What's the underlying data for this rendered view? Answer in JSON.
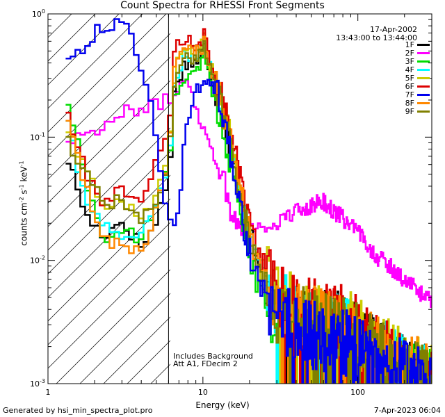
{
  "chart_data": {
    "type": "line",
    "title": "Count Spectra for RHESSI Front Segments",
    "xlabel": "Energy (keV)",
    "ylabel": "counts cm-2 s-1 keV-1",
    "x_scale": "log",
    "y_scale": "log",
    "xlim": [
      1,
      300
    ],
    "ylim": [
      0.001,
      1.0
    ],
    "x_tick_labels": [
      "1",
      "10",
      "100"
    ],
    "y_tick_labels": [
      "10-3",
      "10-2",
      "10-1",
      "100"
    ],
    "shaded_region_upper_keV": 6,
    "annotations": {
      "date": "17-Apr-2002",
      "time_range": "13:43:00 to 13:44:00",
      "note1": "Includes Background",
      "note2": "Att A1, FDecim 2"
    },
    "series": [
      {
        "name": "1F",
        "color": "#000000",
        "knots": [
          [
            1.3,
            0.075
          ],
          [
            1.8,
            0.022
          ],
          [
            2.3,
            0.016
          ],
          [
            3.0,
            0.021
          ],
          [
            4.0,
            0.013
          ],
          [
            5.0,
            0.02
          ],
          [
            6.0,
            0.05
          ],
          [
            6.6,
            0.25
          ],
          [
            7.5,
            0.38
          ],
          [
            9.5,
            0.42
          ],
          [
            10.2,
            0.55
          ],
          [
            11.0,
            0.34
          ],
          [
            13,
            0.18
          ],
          [
            16,
            0.06
          ],
          [
            19,
            0.02
          ],
          [
            23,
            0.008
          ],
          [
            30,
            0.004
          ],
          [
            50,
            0.003
          ],
          [
            80,
            0.003
          ],
          [
            130,
            0.0018
          ],
          [
            200,
            0.0013
          ],
          [
            280,
            0.0011
          ]
        ]
      },
      {
        "name": "2F",
        "color": "#ff00ff",
        "knots": [
          [
            1.3,
            0.095
          ],
          [
            1.8,
            0.11
          ],
          [
            2.5,
            0.13
          ],
          [
            3.5,
            0.17
          ],
          [
            5.0,
            0.18
          ],
          [
            6.0,
            0.2
          ],
          [
            7.0,
            0.25
          ],
          [
            8.0,
            0.32
          ],
          [
            9.0,
            0.18
          ],
          [
            10.0,
            0.12
          ],
          [
            12.0,
            0.07
          ],
          [
            14.0,
            0.04
          ],
          [
            15.5,
            0.022
          ],
          [
            20,
            0.02
          ],
          [
            25,
            0.018
          ],
          [
            30,
            0.02
          ],
          [
            40,
            0.025
          ],
          [
            50,
            0.028
          ],
          [
            60,
            0.03
          ],
          [
            70,
            0.025
          ],
          [
            80,
            0.022
          ],
          [
            90,
            0.019
          ],
          [
            110,
            0.015
          ],
          [
            130,
            0.011
          ],
          [
            160,
            0.009
          ],
          [
            200,
            0.007
          ],
          [
            250,
            0.0055
          ],
          [
            300,
            0.0048
          ]
        ]
      },
      {
        "name": "3F",
        "color": "#00dd00",
        "knots": [
          [
            1.3,
            0.23
          ],
          [
            1.8,
            0.04
          ],
          [
            2.3,
            0.015
          ],
          [
            3.0,
            0.017
          ],
          [
            4.0,
            0.015
          ],
          [
            5.0,
            0.028
          ],
          [
            6.0,
            0.06
          ],
          [
            6.6,
            0.22
          ],
          [
            7.5,
            0.3
          ],
          [
            9.5,
            0.35
          ],
          [
            10.2,
            0.5
          ],
          [
            11.0,
            0.3
          ],
          [
            13,
            0.14
          ],
          [
            16,
            0.045
          ],
          [
            19,
            0.015
          ],
          [
            23,
            0.006
          ],
          [
            30,
            0.0035
          ],
          [
            50,
            0.0025
          ],
          [
            80,
            0.0025
          ],
          [
            130,
            0.0015
          ],
          [
            200,
            0.0012
          ],
          [
            280,
            0.001
          ]
        ]
      },
      {
        "name": "4F",
        "color": "#00ffff",
        "knots": [
          [
            1.3,
            0.17
          ],
          [
            1.8,
            0.025
          ],
          [
            2.3,
            0.02
          ],
          [
            3.0,
            0.015
          ],
          [
            4.0,
            0.017
          ],
          [
            5.0,
            0.025
          ],
          [
            6.0,
            0.06
          ],
          [
            6.6,
            0.3
          ],
          [
            7.5,
            0.45
          ],
          [
            9.5,
            0.5
          ],
          [
            10.2,
            0.6
          ],
          [
            11.0,
            0.4
          ],
          [
            13,
            0.2
          ],
          [
            16,
            0.065
          ],
          [
            19,
            0.022
          ],
          [
            23,
            0.009
          ],
          [
            30,
            0.0045
          ],
          [
            50,
            0.0032
          ],
          [
            80,
            0.003
          ],
          [
            130,
            0.0019
          ],
          [
            200,
            0.0014
          ],
          [
            280,
            0.0012
          ]
        ]
      },
      {
        "name": "5F",
        "color": "#cccc00",
        "knots": [
          [
            1.3,
            0.12
          ],
          [
            1.8,
            0.05
          ],
          [
            2.3,
            0.028
          ],
          [
            3.0,
            0.03
          ],
          [
            4.0,
            0.022
          ],
          [
            5.0,
            0.035
          ],
          [
            6.0,
            0.08
          ],
          [
            6.6,
            0.35
          ],
          [
            7.5,
            0.5
          ],
          [
            9.5,
            0.55
          ],
          [
            10.2,
            0.65
          ],
          [
            11.0,
            0.42
          ],
          [
            13,
            0.22
          ],
          [
            16,
            0.07
          ],
          [
            19,
            0.024
          ],
          [
            23,
            0.01
          ],
          [
            30,
            0.005
          ],
          [
            50,
            0.0035
          ],
          [
            80,
            0.0035
          ],
          [
            130,
            0.002
          ],
          [
            200,
            0.0015
          ],
          [
            280,
            0.0012
          ]
        ]
      },
      {
        "name": "6F",
        "color": "#dd0000",
        "knots": [
          [
            1.3,
            0.18
          ],
          [
            1.8,
            0.045
          ],
          [
            2.3,
            0.028
          ],
          [
            3.0,
            0.04
          ],
          [
            4.0,
            0.03
          ],
          [
            5.0,
            0.06
          ],
          [
            6.0,
            0.1
          ],
          [
            6.6,
            0.55
          ],
          [
            7.5,
            0.6
          ],
          [
            9.5,
            0.55
          ],
          [
            10.2,
            0.7
          ],
          [
            11.0,
            0.45
          ],
          [
            13,
            0.24
          ],
          [
            16,
            0.08
          ],
          [
            19,
            0.026
          ],
          [
            23,
            0.011
          ],
          [
            30,
            0.005
          ],
          [
            50,
            0.0038
          ],
          [
            80,
            0.0035
          ],
          [
            130,
            0.0021
          ],
          [
            200,
            0.0015
          ],
          [
            280,
            0.0012
          ]
        ]
      },
      {
        "name": "7F",
        "color": "#0000ee",
        "knots": [
          [
            1.3,
            0.4
          ],
          [
            1.6,
            0.5
          ],
          [
            2.0,
            0.7
          ],
          [
            2.5,
            0.8
          ],
          [
            3.0,
            0.85
          ],
          [
            3.4,
            0.7
          ],
          [
            3.8,
            0.4
          ],
          [
            4.3,
            0.28
          ],
          [
            4.8,
            0.14
          ],
          [
            5.3,
            0.06
          ],
          [
            5.8,
            0.025
          ],
          [
            6.2,
            0.022
          ],
          [
            6.8,
            0.02
          ],
          [
            7.3,
            0.05
          ],
          [
            7.8,
            0.12
          ],
          [
            8.4,
            0.16
          ],
          [
            9.0,
            0.25
          ],
          [
            10.0,
            0.26
          ],
          [
            11.0,
            0.27
          ],
          [
            12.5,
            0.25
          ],
          [
            14,
            0.12
          ],
          [
            16,
            0.045
          ],
          [
            19,
            0.015
          ],
          [
            23,
            0.006
          ],
          [
            30,
            0.0035
          ],
          [
            50,
            0.0025
          ],
          [
            80,
            0.0022
          ],
          [
            130,
            0.0015
          ],
          [
            200,
            0.0012
          ],
          [
            280,
            0.001
          ]
        ]
      },
      {
        "name": "8F",
        "color": "#ff8800",
        "knots": [
          [
            1.3,
            0.15
          ],
          [
            1.8,
            0.035
          ],
          [
            2.3,
            0.015
          ],
          [
            3.0,
            0.013
          ],
          [
            4.0,
            0.012
          ],
          [
            5.0,
            0.025
          ],
          [
            6.0,
            0.07
          ],
          [
            6.6,
            0.4
          ],
          [
            7.5,
            0.5
          ],
          [
            9.5,
            0.48
          ],
          [
            10.2,
            0.6
          ],
          [
            11.0,
            0.4
          ],
          [
            13,
            0.2
          ],
          [
            16,
            0.065
          ],
          [
            19,
            0.022
          ],
          [
            23,
            0.009
          ],
          [
            30,
            0.0045
          ],
          [
            50,
            0.0033
          ],
          [
            80,
            0.003
          ],
          [
            130,
            0.0019
          ],
          [
            200,
            0.0014
          ],
          [
            280,
            0.0012
          ]
        ]
      },
      {
        "name": "9F",
        "color": "#808000",
        "knots": [
          [
            1.3,
            0.1
          ],
          [
            1.8,
            0.05
          ],
          [
            2.3,
            0.03
          ],
          [
            3.0,
            0.03
          ],
          [
            4.0,
            0.02
          ],
          [
            5.0,
            0.03
          ],
          [
            6.0,
            0.07
          ],
          [
            6.6,
            0.3
          ],
          [
            7.5,
            0.45
          ],
          [
            9.5,
            0.45
          ],
          [
            10.2,
            0.55
          ],
          [
            11.0,
            0.38
          ],
          [
            13,
            0.19
          ],
          [
            16,
            0.06
          ],
          [
            19,
            0.02
          ],
          [
            23,
            0.008
          ],
          [
            30,
            0.004
          ],
          [
            50,
            0.003
          ],
          [
            80,
            0.003
          ],
          [
            130,
            0.0018
          ],
          [
            200,
            0.0013
          ],
          [
            280,
            0.0011
          ]
        ]
      }
    ]
  },
  "footer": {
    "generated_by": "Generated by hsi_min_spectra_plot.pro",
    "timestamp": "7-Apr-2023 06:04"
  }
}
